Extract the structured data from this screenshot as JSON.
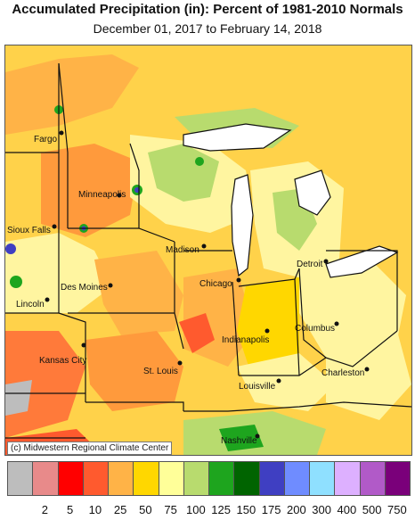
{
  "header": {
    "title": "Accumulated Precipitation (in): Percent of 1981-2010 Normals",
    "subtitle": "December 01, 2017 to February 14, 2018"
  },
  "credit": "(c) Midwestern Regional Climate Center",
  "legend": {
    "items": [
      {
        "color": "#bdbdbd",
        "label": ""
      },
      {
        "color": "#e88a8a",
        "label": "2"
      },
      {
        "color": "#ff0000",
        "label": "5"
      },
      {
        "color": "#ff5a2e",
        "label": "10"
      },
      {
        "color": "#ffb347",
        "label": "25"
      },
      {
        "color": "#ffd700",
        "label": "50"
      },
      {
        "color": "#ffff99",
        "label": "75"
      },
      {
        "color": "#b8db6e",
        "label": "100"
      },
      {
        "color": "#1ea51e",
        "label": "125"
      },
      {
        "color": "#006400",
        "label": "150"
      },
      {
        "color": "#3f3fc2",
        "label": "175"
      },
      {
        "color": "#6f8cff",
        "label": "200"
      },
      {
        "color": "#8fe0ff",
        "label": "300"
      },
      {
        "color": "#ddb0ff",
        "label": "400"
      },
      {
        "color": "#b15ac8",
        "label": "500"
      },
      {
        "color": "#7a007a",
        "label": "750"
      }
    ]
  },
  "cities": [
    "Fargo",
    "Minneapolis",
    "Sioux Falls",
    "Madison",
    "Detroit",
    "Chicago",
    "Des Moines",
    "Lincoln",
    "Columbus",
    "Indianapolis",
    "Kansas City",
    "St. Louis",
    "Charleston",
    "Louisville",
    "Nashville"
  ]
}
